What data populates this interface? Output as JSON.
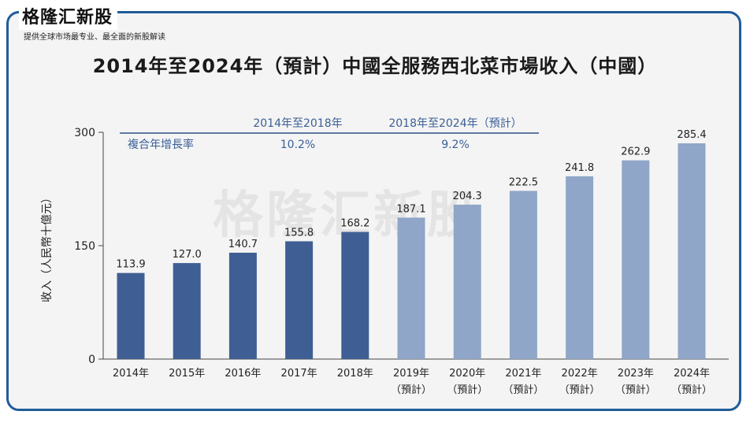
{
  "header": {
    "brand": "格隆汇新股",
    "tagline": "提供全球市场最专业、最全面的新股解读",
    "watermark": "格隆汇新股"
  },
  "chart_data": {
    "type": "bar",
    "title": "2014年至2024年（預計）中國全服務西北菜市場收入（中國）",
    "ylabel": "收入（人民幣十億元）",
    "xlabel": "",
    "ylim": [
      0,
      300
    ],
    "yticks": [
      "0",
      "150",
      "300"
    ],
    "categories": [
      "2014年",
      "2015年",
      "2016年",
      "2017年",
      "2018年",
      "2019年",
      "2020年",
      "2021年",
      "2022年",
      "2023年",
      "2024年"
    ],
    "category_notes": [
      "",
      "",
      "",
      "",
      "",
      "（預計）",
      "（預計）",
      "（預計）",
      "（預計）",
      "（預計）",
      "（預計）"
    ],
    "values": [
      113.9,
      127.0,
      140.7,
      155.8,
      168.2,
      187.1,
      204.3,
      222.5,
      241.8,
      262.9,
      285.4
    ],
    "value_labels": [
      "113.9",
      "127.0",
      "140.7",
      "155.8",
      "168.2",
      "187.1",
      "204.3",
      "222.5",
      "241.8",
      "262.9",
      "285.4"
    ],
    "colors": {
      "historical": "#3f5f94",
      "forecast": "#8fa6c8"
    },
    "grid": false,
    "cagr_table": {
      "row_label": "複合年增長率",
      "columns": [
        "2014年至2018年",
        "2018年至2024年（預計）"
      ],
      "values": [
        "10.2%",
        "9.2%"
      ]
    }
  }
}
